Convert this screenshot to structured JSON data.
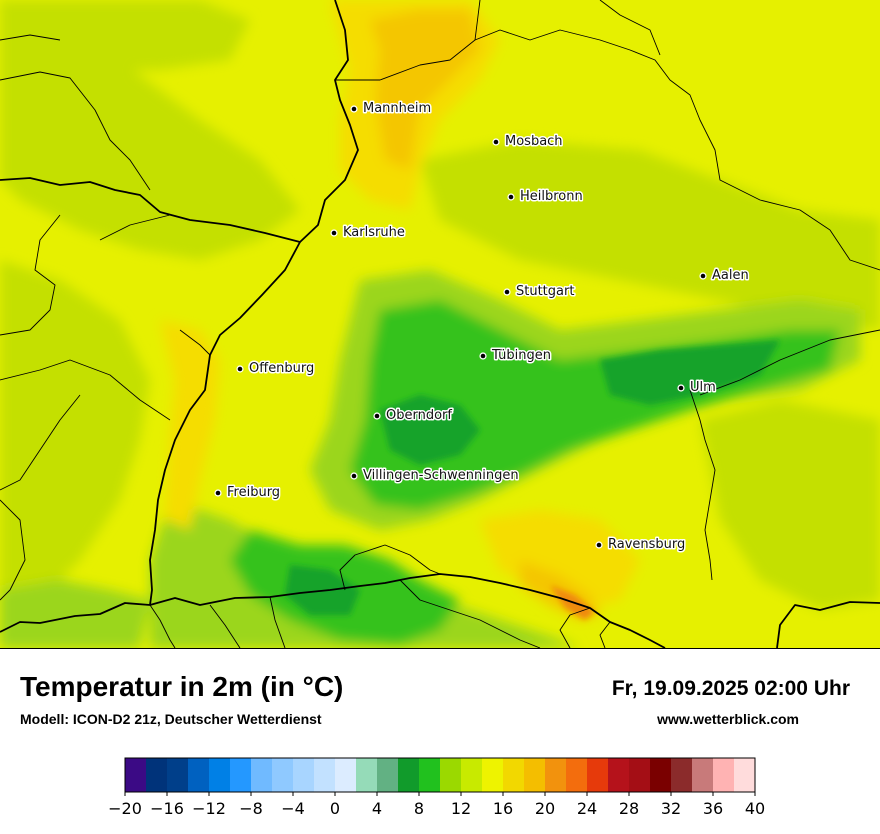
{
  "map": {
    "cities": [
      {
        "name": "Mannheim",
        "icon": "city-dot-icon"
      },
      {
        "name": "Mosbach",
        "icon": "city-dot-icon"
      },
      {
        "name": "Heilbronn",
        "icon": "city-dot-icon"
      },
      {
        "name": "Karlsruhe",
        "icon": "city-dot-icon"
      },
      {
        "name": "Stuttgart",
        "icon": "city-dot-icon"
      },
      {
        "name": "Aalen",
        "icon": "city-dot-icon"
      },
      {
        "name": "Tübingen",
        "icon": "city-dot-icon"
      },
      {
        "name": "Offenburg",
        "icon": "city-dot-icon"
      },
      {
        "name": "Ulm",
        "icon": "city-dot-icon"
      },
      {
        "name": "Oberndorf",
        "icon": "city-dot-icon"
      },
      {
        "name": "Villingen-Schwenningen",
        "icon": "city-dot-icon"
      },
      {
        "name": "Freiburg",
        "icon": "city-dot-icon"
      },
      {
        "name": "Ravensburg",
        "icon": "city-dot-icon"
      }
    ],
    "colors": {
      "base": "#e6f000",
      "warm": "#f5dd00",
      "warmer": "#f4c600",
      "hot": "#f08a10",
      "mild": "#c4e000",
      "cool": "#9bd61a",
      "cooler": "#36c21c",
      "coolest": "#14a32a"
    }
  },
  "footer": {
    "title": "Temperatur in 2m (in °C)",
    "subtitle": "Modell: ICON-D2 21z, Deutscher Wetterdienst",
    "datetime": "Fr, 19.09.2025 02:00 Uhr",
    "website": "www.wetterblick.com"
  },
  "legend": {
    "colors": [
      "#3b0a85",
      "#00337a",
      "#003f8a",
      "#0061c0",
      "#0080e6",
      "#2498ff",
      "#70baff",
      "#8fc9ff",
      "#a8d5ff",
      "#c2e1ff",
      "#dcecff",
      "#95dbb8",
      "#62b183",
      "#119b2b",
      "#21c11e",
      "#9bd900",
      "#c8ea00",
      "#eef300",
      "#f2d800",
      "#f4be00",
      "#f2920d",
      "#f36d0d",
      "#e63a0b",
      "#b5121b",
      "#a40e15",
      "#7a0000",
      "#8b2b2b",
      "#c87a7a",
      "#ffb3b3",
      "#ffdcdc"
    ],
    "tick_labels": [
      "−20",
      "−16",
      "−12",
      "−8",
      "−4",
      "0",
      "4",
      "8",
      "12",
      "16",
      "20",
      "24",
      "28",
      "32",
      "36",
      "40"
    ]
  }
}
